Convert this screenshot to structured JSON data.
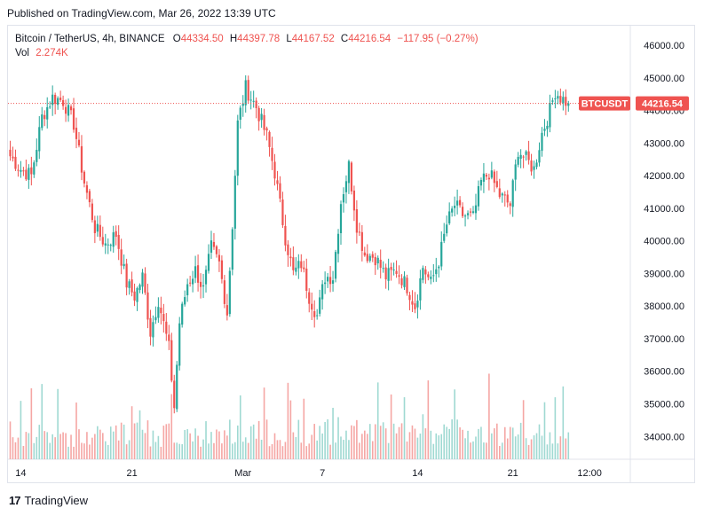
{
  "header": {
    "published": "Published on TradingView.com, Mar 26, 2022 13:39 UTC"
  },
  "legend": {
    "symbol": "Bitcoin / TetherUS, 4h, BINANCE",
    "o_label": "O",
    "o_value": "44334.50",
    "h_label": "H",
    "h_value": "44397.78",
    "l_label": "L",
    "l_value": "44167.52",
    "c_label": "C",
    "c_value": "44216.54",
    "change": "−117.95 (−0.27%)",
    "vol_label": "Vol",
    "vol_value": "2.274K"
  },
  "price_tag": {
    "symbol": "BTCUSDT",
    "value": "44216.54"
  },
  "footer": {
    "logo_mark": "17",
    "logo_text": "TradingView"
  },
  "colors": {
    "up": "#26a69a",
    "down": "#ef5350",
    "up_volume": "#9fd9d2",
    "down_volume": "#f5a6a4",
    "price_line": "#ef5350"
  },
  "chart_data": {
    "type": "candlestick",
    "title": "Bitcoin / TetherUS, 4h, BINANCE",
    "ylabel": "",
    "ylim": [
      33300,
      46600
    ],
    "y_ticks": [
      "46000.00",
      "45000.00",
      "44000.00",
      "43000.00",
      "42000.00",
      "41000.00",
      "40000.00",
      "39000.00",
      "38000.00",
      "37000.00",
      "36000.00",
      "35000.00",
      "34000.00"
    ],
    "x_ticks": [
      {
        "label": "14",
        "bar": 4
      },
      {
        "label": "21",
        "bar": 46
      },
      {
        "label": "Mar",
        "bar": 88
      },
      {
        "label": "7",
        "bar": 118
      },
      {
        "label": "14",
        "bar": 154
      },
      {
        "label": "21",
        "bar": 190
      },
      {
        "label": "12:00",
        "bar": 219
      }
    ],
    "last_price": 44216.54,
    "anchors": [
      [
        0,
        42600
      ],
      [
        4,
        42200
      ],
      [
        8,
        42000
      ],
      [
        12,
        43800
      ],
      [
        16,
        44400
      ],
      [
        20,
        44300
      ],
      [
        24,
        43600
      ],
      [
        28,
        41800
      ],
      [
        32,
        40400
      ],
      [
        36,
        39900
      ],
      [
        40,
        40200
      ],
      [
        44,
        38700
      ],
      [
        47,
        38300
      ],
      [
        50,
        38900
      ],
      [
        53,
        37200
      ],
      [
        56,
        38200
      ],
      [
        60,
        36700
      ],
      [
        62,
        34900
      ],
      [
        64,
        37500
      ],
      [
        67,
        38700
      ],
      [
        70,
        39100
      ],
      [
        73,
        38500
      ],
      [
        76,
        39800
      ],
      [
        79,
        39300
      ],
      [
        82,
        37800
      ],
      [
        84,
        40500
      ],
      [
        86,
        43600
      ],
      [
        89,
        44700
      ],
      [
        93,
        44100
      ],
      [
        97,
        43200
      ],
      [
        100,
        42100
      ],
      [
        104,
        40100
      ],
      [
        107,
        39000
      ],
      [
        110,
        39300
      ],
      [
        113,
        38300
      ],
      [
        116,
        37700
      ],
      [
        119,
        38900
      ],
      [
        122,
        38900
      ],
      [
        125,
        41200
      ],
      [
        128,
        42300
      ],
      [
        131,
        40500
      ],
      [
        134,
        39600
      ],
      [
        138,
        39500
      ],
      [
        142,
        38900
      ],
      [
        146,
        39100
      ],
      [
        150,
        38600
      ],
      [
        153,
        38000
      ],
      [
        156,
        39200
      ],
      [
        159,
        38700
      ],
      [
        162,
        39400
      ],
      [
        165,
        40500
      ],
      [
        168,
        41100
      ],
      [
        171,
        40800
      ],
      [
        175,
        40700
      ],
      [
        178,
        41800
      ],
      [
        181,
        42100
      ],
      [
        185,
        41400
      ],
      [
        189,
        41100
      ],
      [
        192,
        42800
      ],
      [
        195,
        42500
      ],
      [
        198,
        42200
      ],
      [
        201,
        43300
      ],
      [
        204,
        44000
      ],
      [
        206,
        44600
      ],
      [
        208,
        44400
      ],
      [
        211,
        44216.54
      ]
    ],
    "volume_range": [
      0,
      3000
    ]
  }
}
